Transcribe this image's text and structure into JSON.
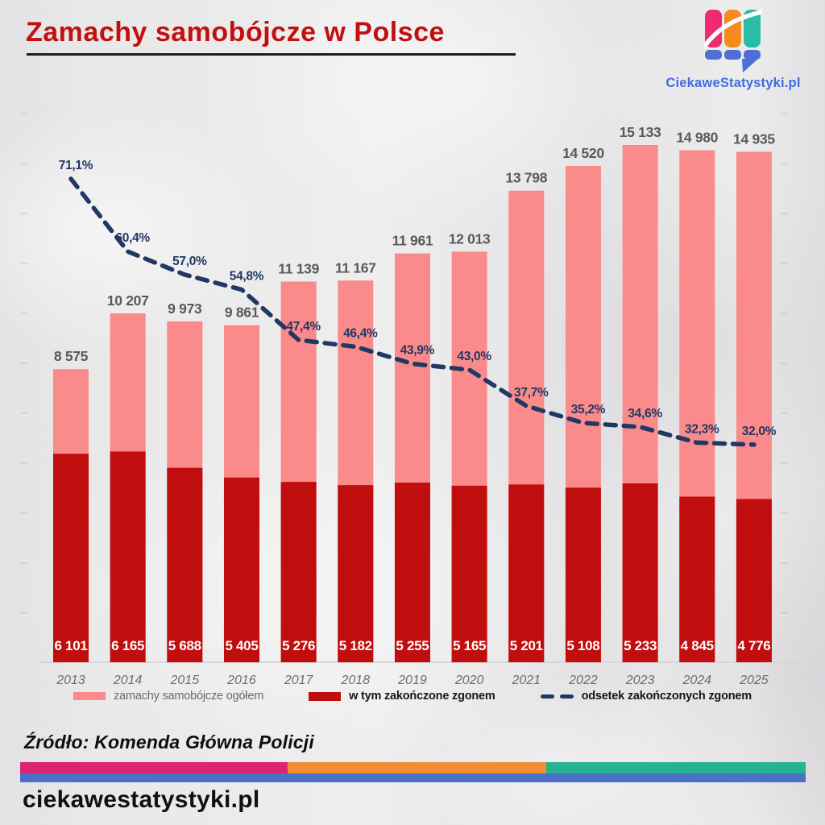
{
  "header": {
    "title": "Zamachy samobójcze w Polsce",
    "brand": "CiekaweStatystyki.pl"
  },
  "brand_colors": {
    "pink": "#ee2a70",
    "orange": "#f58b1f",
    "teal": "#28bda4",
    "blue": "#4d6fd6"
  },
  "chart_data": {
    "type": "bar",
    "title": "Zamachy samobójcze w Polsce",
    "categories": [
      "2013",
      "2014",
      "2015",
      "2016",
      "2017",
      "2018",
      "2019",
      "2020",
      "2021",
      "2022",
      "2023",
      "2024",
      "2025"
    ],
    "series": [
      {
        "name": "zamachy samobójcze ogółem",
        "type": "bar",
        "color": "#fb8a8a",
        "values": [
          8575,
          10207,
          9973,
          9861,
          11139,
          11167,
          11961,
          12013,
          13798,
          14520,
          15133,
          14980,
          14935
        ],
        "labels": [
          "8 575",
          "10 207",
          "9 973",
          "9 861",
          "11 139",
          "11 167",
          "11 961",
          "12 013",
          "13 798",
          "14 520",
          "15 133",
          "14 980",
          "14 935"
        ],
        "label_color": "#595959"
      },
      {
        "name": "w tym zakończone zgonem",
        "type": "bar",
        "color": "#c00d0d",
        "values": [
          6101,
          6165,
          5688,
          5405,
          5276,
          5182,
          5255,
          5165,
          5201,
          5108,
          5233,
          4845,
          4776
        ],
        "labels": [
          "6 101",
          "6 165",
          "5 688",
          "5 405",
          "5 276",
          "5 182",
          "5 255",
          "5 165",
          "5 201",
          "5 108",
          "5 233",
          "4 845",
          "4 776"
        ],
        "label_color": "#ffffff"
      },
      {
        "name": "odsetek zakończonych zgonem",
        "type": "line",
        "style": "dashed",
        "color": "#1f3864",
        "values": [
          71.1,
          60.4,
          57.0,
          54.8,
          47.4,
          46.4,
          43.9,
          43.0,
          37.7,
          35.2,
          34.6,
          32.3,
          32.0
        ],
        "labels": [
          "71,1%",
          "60,4%",
          "57,0%",
          "54,8%",
          "47,4%",
          "46,4%",
          "43,9%",
          "43,0%",
          "37,7%",
          "35,2%",
          "34,6%",
          "32,3%",
          "32,0%"
        ],
        "label_color": "#1f3864"
      }
    ],
    "ylim": [
      0,
      15500
    ],
    "grid": false,
    "legend_position": "bottom",
    "bar_mode": "overlay"
  },
  "legend": {
    "items": [
      {
        "label": "zamachy samobójcze ogółem",
        "color": "#fb8a8a",
        "marker": "swatch"
      },
      {
        "label": "w tym zakończone zgonem",
        "color": "#c00d0d",
        "marker": "swatch"
      },
      {
        "label": "odsetek zakończonych zgonem",
        "color": "#1f3864",
        "marker": "dashes"
      }
    ]
  },
  "footer": {
    "source": "Źródło: Komenda Główna Policji",
    "site": "ciekawestatystyki.pl",
    "stripe_colors": {
      "magenta": "#d92573",
      "orange": "#f18e35",
      "teal": "#26b391",
      "blue": "#4a70c8"
    }
  }
}
